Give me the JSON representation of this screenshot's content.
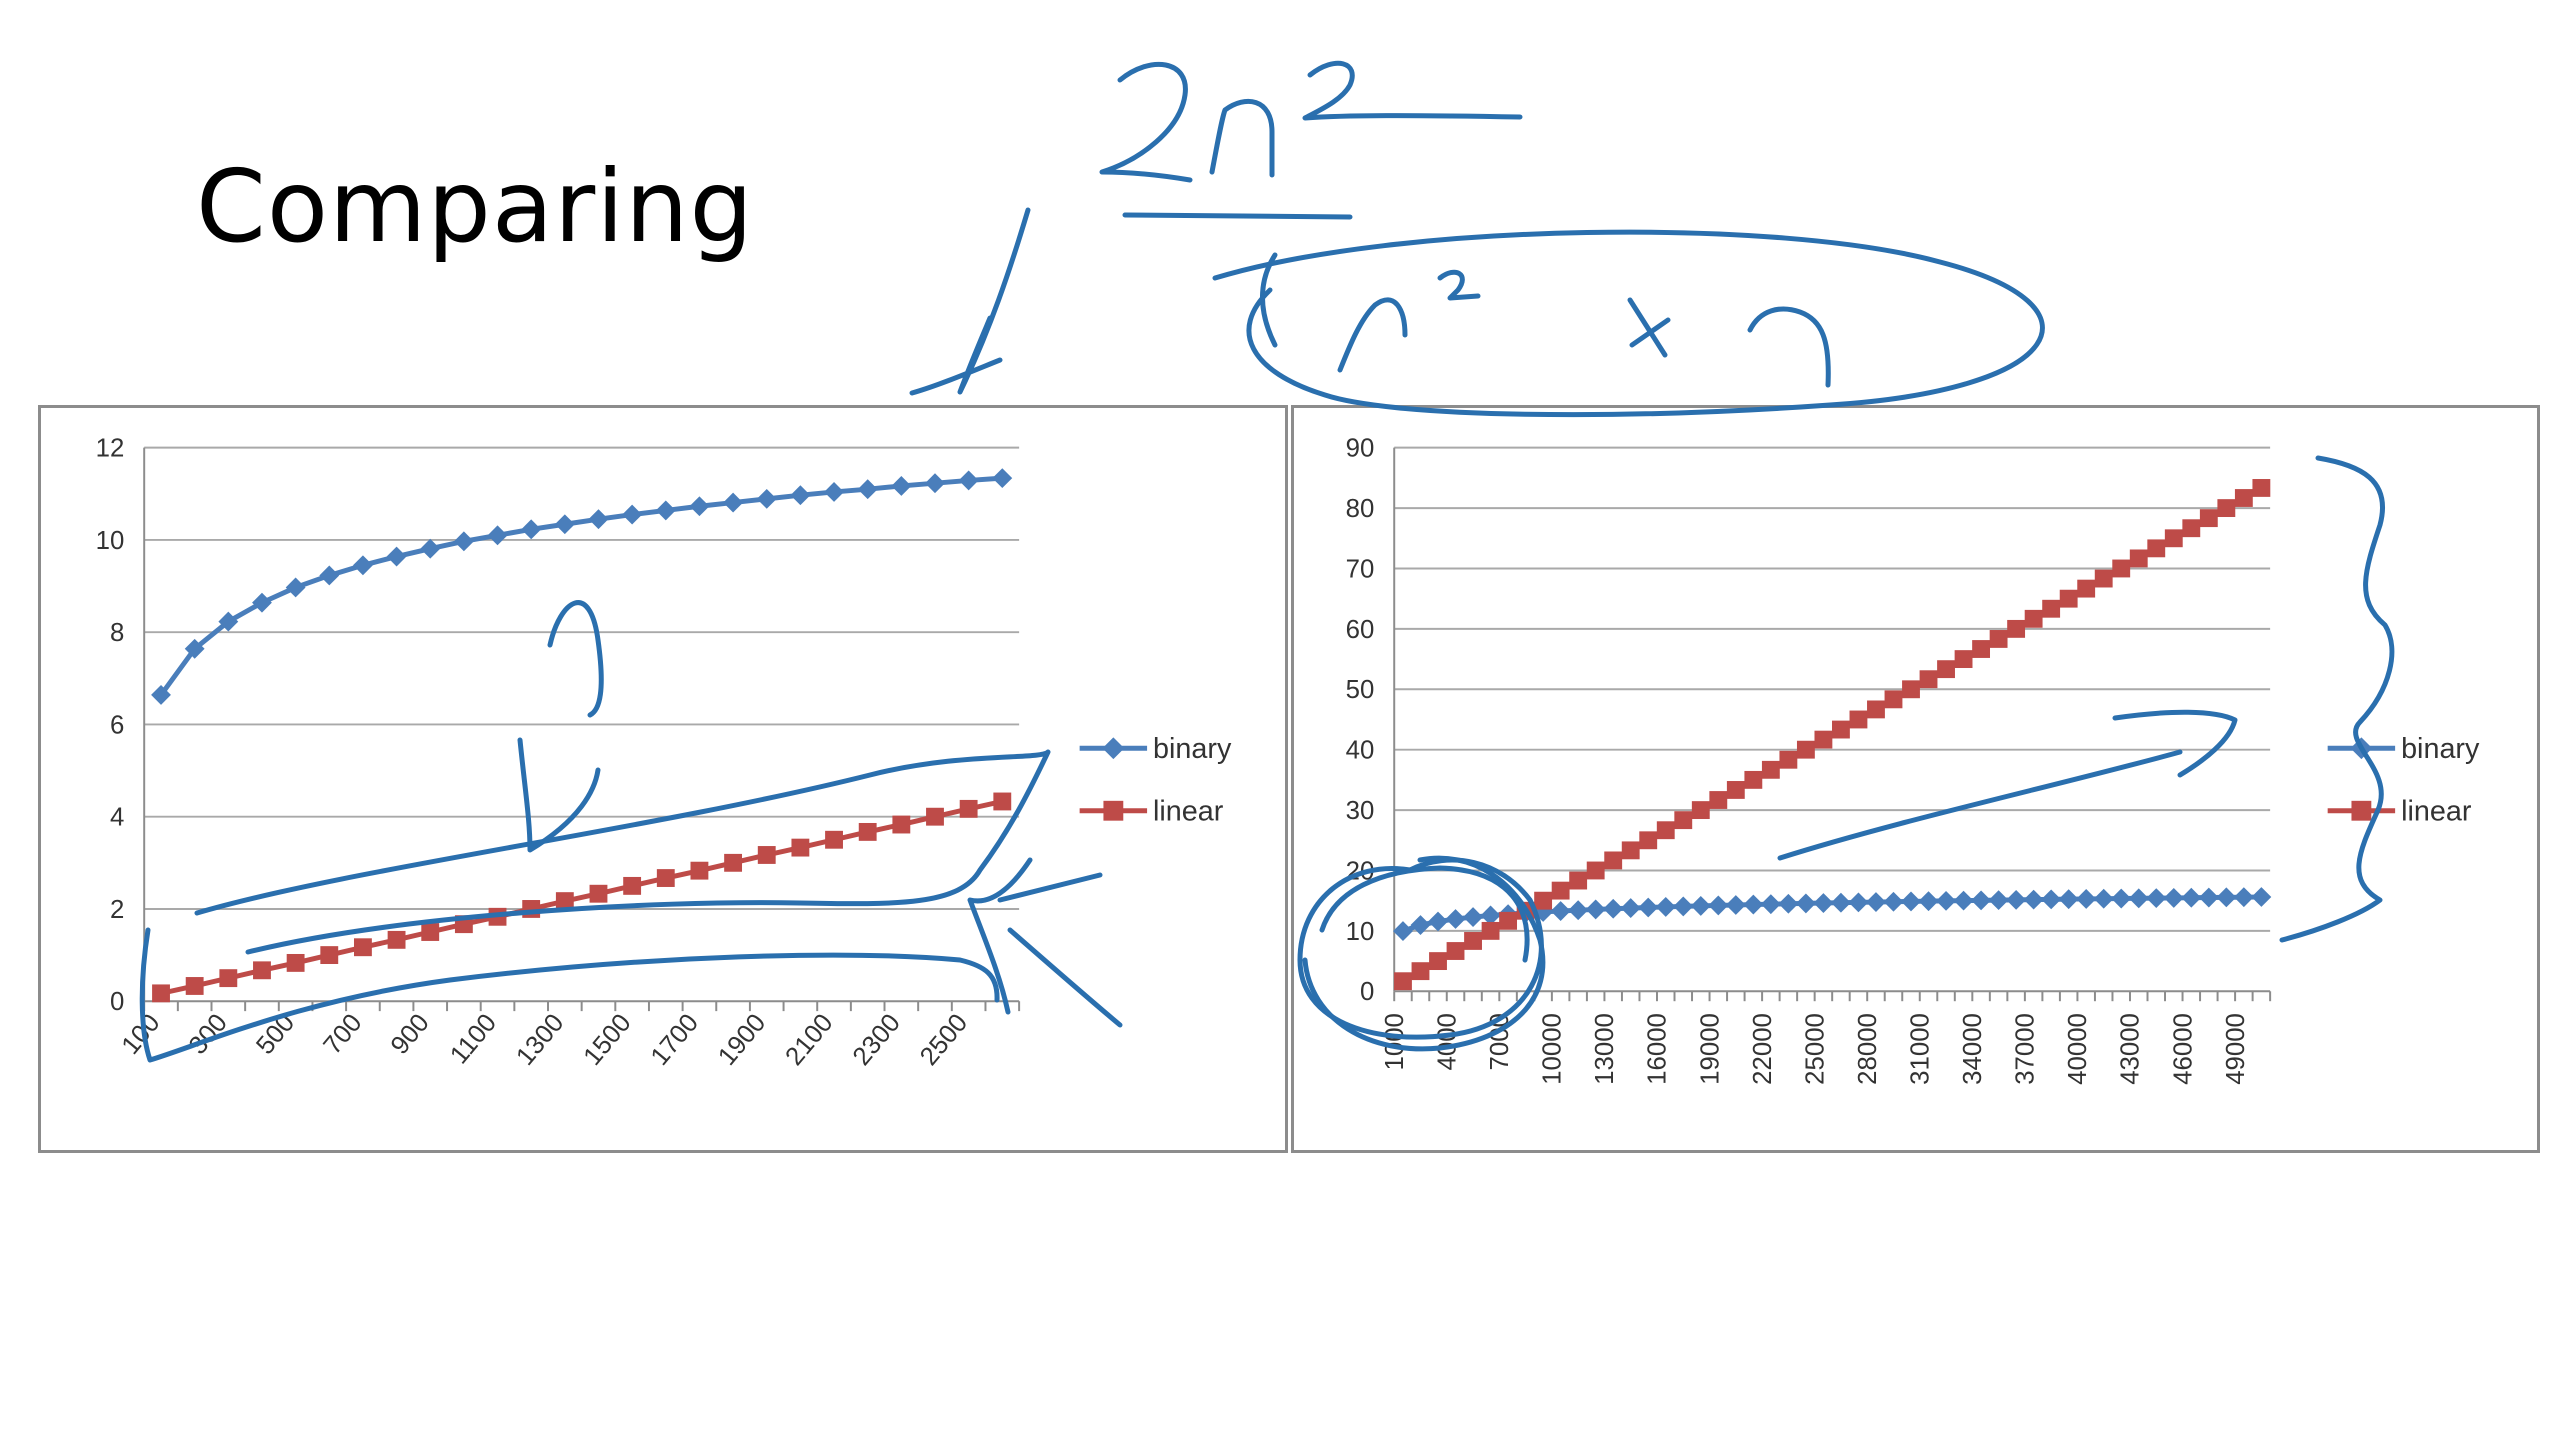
{
  "slide": {
    "title": "Comparing"
  },
  "colors": {
    "binary": "#4a7ebb",
    "linear": "#be4b48",
    "grid": "#868686",
    "ink": "#2a6fae"
  },
  "chart_data": [
    {
      "type": "line",
      "x_tick_labels": [
        "100",
        "300",
        "500",
        "700",
        "900",
        "1100",
        "1300",
        "1500",
        "1700",
        "1900",
        "2100",
        "2300",
        "2500"
      ],
      "x_start": 100,
      "x_step": 100,
      "n_points": 26,
      "ylim": [
        0,
        12
      ],
      "y_ticks": [
        0,
        2,
        4,
        6,
        8,
        10,
        12
      ],
      "grid": true,
      "legend_position": "right",
      "series": [
        {
          "name": "binary",
          "marker": "diamond",
          "function": "log2(n)",
          "values": [
            6.64,
            7.64,
            8.23,
            8.64,
            8.97,
            9.23,
            9.45,
            9.64,
            9.81,
            9.97,
            10.1,
            10.23,
            10.34,
            10.45,
            10.55,
            10.64,
            10.73,
            10.81,
            10.89,
            10.97,
            11.04,
            11.1,
            11.17,
            11.23,
            11.29,
            11.34
          ]
        },
        {
          "name": "linear",
          "marker": "square",
          "function": "n/600",
          "values": [
            0.17,
            0.33,
            0.5,
            0.67,
            0.83,
            1.0,
            1.17,
            1.33,
            1.5,
            1.67,
            1.83,
            2.0,
            2.17,
            2.33,
            2.5,
            2.67,
            2.83,
            3.0,
            3.17,
            3.33,
            3.5,
            3.67,
            3.83,
            4.0,
            4.17,
            4.33
          ]
        }
      ]
    },
    {
      "type": "line",
      "x_tick_labels": [
        "1000",
        "4000",
        "7000",
        "10000",
        "13000",
        "16000",
        "19000",
        "22000",
        "25000",
        "28000",
        "31000",
        "34000",
        "37000",
        "40000",
        "43000",
        "46000",
        "49000"
      ],
      "x_start": 1000,
      "x_step": 1000,
      "n_points": 50,
      "ylim": [
        0,
        90
      ],
      "y_ticks": [
        0,
        10,
        20,
        30,
        40,
        50,
        60,
        70,
        80,
        90
      ],
      "grid": true,
      "legend_position": "right",
      "series": [
        {
          "name": "binary",
          "marker": "diamond",
          "function": "log2(n)",
          "first_value": 9.97,
          "last_value": 15.61
        },
        {
          "name": "linear",
          "marker": "square",
          "function": "n/600",
          "first_value": 1.67,
          "last_value": 83.33
        }
      ]
    }
  ]
}
